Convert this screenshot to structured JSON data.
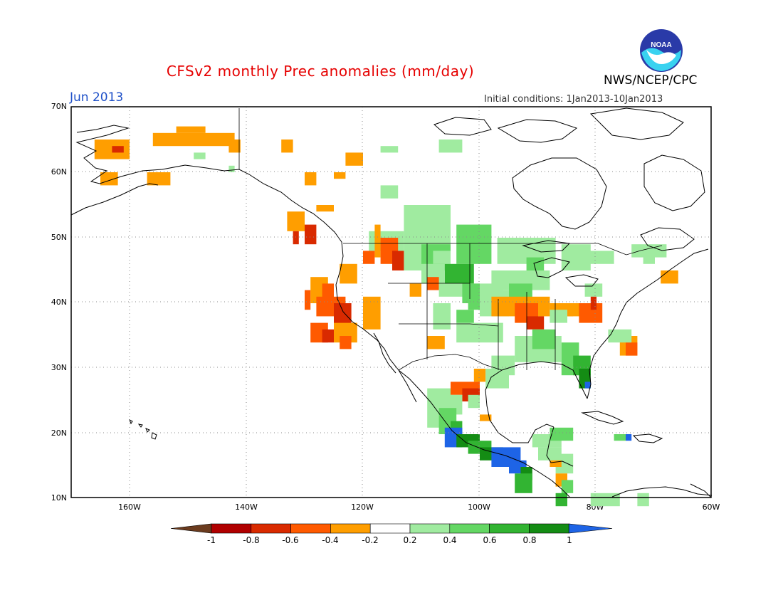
{
  "header": {
    "title": "CFSv2 monthly Prec anomalies (mm/day)",
    "month": "Jun 2013",
    "initial_conditions": "Initial conditions: 1Jan2013-10Jan2013",
    "organization": "NWS/NCEP/CPC",
    "logo_text": "NOAA"
  },
  "colors": {
    "title": "#e60000",
    "month": "#1e50c8",
    "bins": [
      "#6b3b1e",
      "#b00000",
      "#d92a00",
      "#ff5a00",
      "#ff9e00",
      "#ffffff",
      "#a0eba0",
      "#64d764",
      "#32b432",
      "#148c14",
      "#1e64e6"
    ]
  },
  "map": {
    "lat_labels": [
      "70N",
      "60N",
      "50N",
      "40N",
      "30N",
      "20N",
      "10N"
    ],
    "lon_labels": [
      "160W",
      "140W",
      "120W",
      "100W",
      "80W",
      "60W"
    ],
    "lat_range": [
      10,
      70
    ],
    "lon_range": [
      -170,
      -60
    ]
  },
  "colorbar": {
    "labels": [
      "-1",
      "-0.8",
      "-0.6",
      "-0.4",
      "-0.2",
      "0.2",
      "0.4",
      "0.6",
      "0.8",
      "1"
    ]
  }
}
